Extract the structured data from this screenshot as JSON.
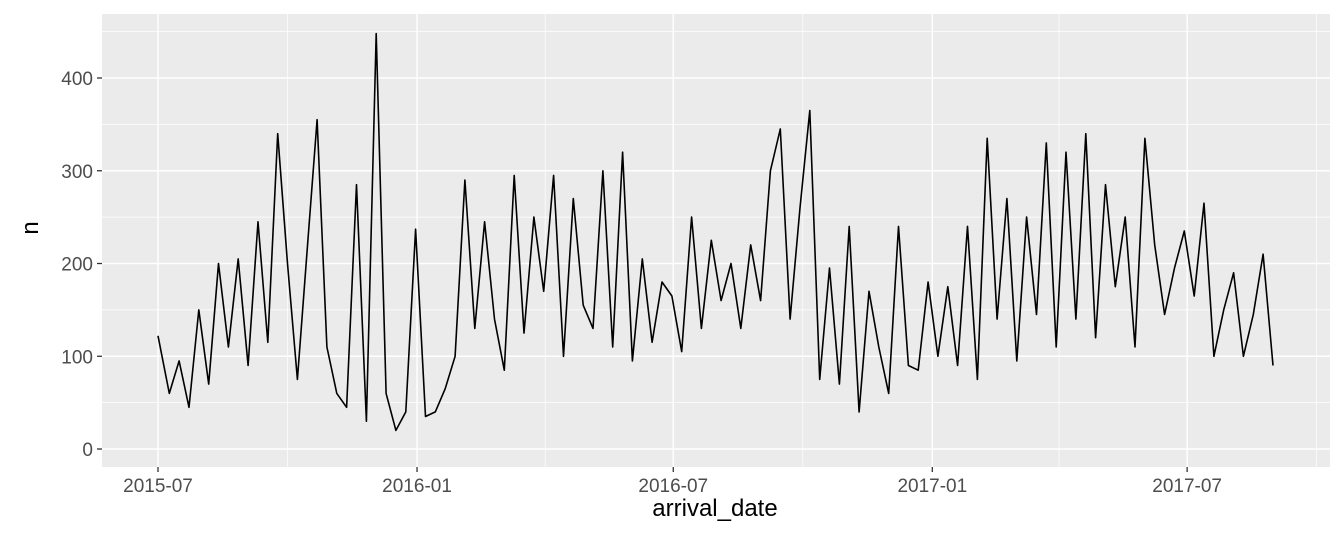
{
  "chart_data": {
    "type": "line",
    "title": "",
    "xlabel": "arrival_date",
    "ylabel": "n",
    "x_tick_labels": [
      "2015-07",
      "2016-01",
      "2016-07",
      "2017-01",
      "2017-07"
    ],
    "y_tick_labels": [
      "0",
      "100",
      "200",
      "300",
      "400"
    ],
    "xlim": [
      "2015-07-01",
      "2017-08-31"
    ],
    "ylim": [
      0,
      450
    ],
    "grid": true,
    "colors": {
      "panel": "#ebebeb",
      "grid": "#ffffff",
      "line": "#000000",
      "tick_text": "#4d4d4d"
    },
    "x": [
      "2015-07-01",
      "2015-07-09",
      "2015-07-16",
      "2015-07-23",
      "2015-07-30",
      "2015-08-06",
      "2015-08-13",
      "2015-08-20",
      "2015-08-27",
      "2015-09-03",
      "2015-09-10",
      "2015-09-17",
      "2015-09-24",
      "2015-10-01",
      "2015-10-08",
      "2015-10-15",
      "2015-10-22",
      "2015-10-29",
      "2015-11-05",
      "2015-11-12",
      "2015-11-19",
      "2015-11-26",
      "2015-12-03",
      "2015-12-10",
      "2015-12-17",
      "2015-12-24",
      "2015-12-31",
      "2016-01-07",
      "2016-01-14",
      "2016-01-21",
      "2016-01-28",
      "2016-02-04",
      "2016-02-11",
      "2016-02-18",
      "2016-02-25",
      "2016-03-03",
      "2016-03-10",
      "2016-03-17",
      "2016-03-24",
      "2016-03-31",
      "2016-04-07",
      "2016-04-14",
      "2016-04-21",
      "2016-04-28",
      "2016-05-05",
      "2016-05-12",
      "2016-05-19",
      "2016-05-26",
      "2016-06-02",
      "2016-06-09",
      "2016-06-16",
      "2016-06-23",
      "2016-06-30",
      "2016-07-07",
      "2016-07-14",
      "2016-07-21",
      "2016-07-28",
      "2016-08-04",
      "2016-08-11",
      "2016-08-18",
      "2016-08-25",
      "2016-09-01",
      "2016-09-08",
      "2016-09-15",
      "2016-09-22",
      "2016-09-29",
      "2016-10-06",
      "2016-10-13",
      "2016-10-20",
      "2016-10-27",
      "2016-11-03",
      "2016-11-10",
      "2016-11-17",
      "2016-11-24",
      "2016-12-01",
      "2016-12-08",
      "2016-12-15",
      "2016-12-22",
      "2016-12-29",
      "2017-01-05",
      "2017-01-12",
      "2017-01-19",
      "2017-01-26",
      "2017-02-02",
      "2017-02-09",
      "2017-02-16",
      "2017-02-23",
      "2017-03-02",
      "2017-03-09",
      "2017-03-16",
      "2017-03-23",
      "2017-03-30",
      "2017-04-06",
      "2017-04-13",
      "2017-04-20",
      "2017-04-27",
      "2017-05-04",
      "2017-05-11",
      "2017-05-18",
      "2017-05-25",
      "2017-06-01",
      "2017-06-08",
      "2017-06-15",
      "2017-06-22",
      "2017-06-29",
      "2017-07-06",
      "2017-07-13",
      "2017-07-20",
      "2017-07-27",
      "2017-08-03",
      "2017-08-10",
      "2017-08-17",
      "2017-08-24",
      "2017-08-31"
    ],
    "series": [
      {
        "values": [
          122,
          60,
          95,
          45,
          150,
          70,
          200,
          110,
          205,
          90,
          245,
          115,
          340,
          200,
          75,
          215,
          355,
          110,
          60,
          45,
          285,
          30,
          448,
          60,
          20,
          40,
          237,
          35,
          40,
          65,
          100,
          290,
          130,
          245,
          140,
          85,
          295,
          125,
          250,
          170,
          295,
          100,
          270,
          155,
          130,
          300,
          110,
          320,
          95,
          205,
          115,
          180,
          165,
          105,
          250,
          130,
          225,
          160,
          200,
          130,
          220,
          160,
          300,
          345,
          140,
          260,
          365,
          75,
          195,
          70,
          240,
          40,
          170,
          110,
          60,
          240,
          90,
          85,
          180,
          100,
          175,
          90,
          240,
          75,
          335,
          140,
          270,
          95,
          250,
          145,
          330,
          110,
          320,
          140,
          340,
          120,
          285,
          175,
          250,
          110,
          335,
          220,
          145,
          195,
          235,
          165,
          265,
          100,
          150,
          190,
          100,
          145,
          210,
          90
        ]
      }
    ]
  }
}
